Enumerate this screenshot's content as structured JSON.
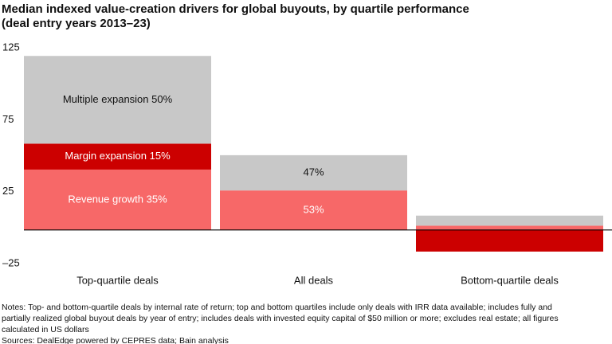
{
  "chart_data": {
    "type": "stacked-bar",
    "title": [
      "Median indexed value-creation drivers for global buyouts, by quartile performance",
      "(deal entry years 2013–23)"
    ],
    "categories": [
      "Top-quartile deals",
      "All deals",
      "Bottom-quartile deals"
    ],
    "series": [
      {
        "color": "#f76868",
        "values": [
          42,
          27.5,
          3
        ]
      },
      {
        "color": "#cc0000",
        "values": [
          18,
          null,
          -15
        ]
      },
      {
        "color": "#c8c8c8",
        "values": [
          61,
          24.5,
          7
        ]
      }
    ],
    "annotations": [
      "Multiple expansion 50%",
      "Margin expansion 15%",
      "Revenue growth 35%",
      "47%",
      "53%"
    ],
    "ylim": [
      -25,
      125
    ],
    "yticks": [
      125,
      75,
      25,
      {
        "value": -25,
        "label": "–25"
      }
    ],
    "grid": false,
    "notes": [
      "Notes: Top- and bottom-quartile deals by internal rate of return; top and bottom quartiles include only deals with IRR data available; includes fully and",
      "partially realized global buyout deals by year of entry; includes deals with invested equity capital of $50 million or more; excludes real estate; all figures",
      "calculated in US dollars",
      "Sources: DealEdge powered by CEPRES data; Bain analysis"
    ]
  }
}
